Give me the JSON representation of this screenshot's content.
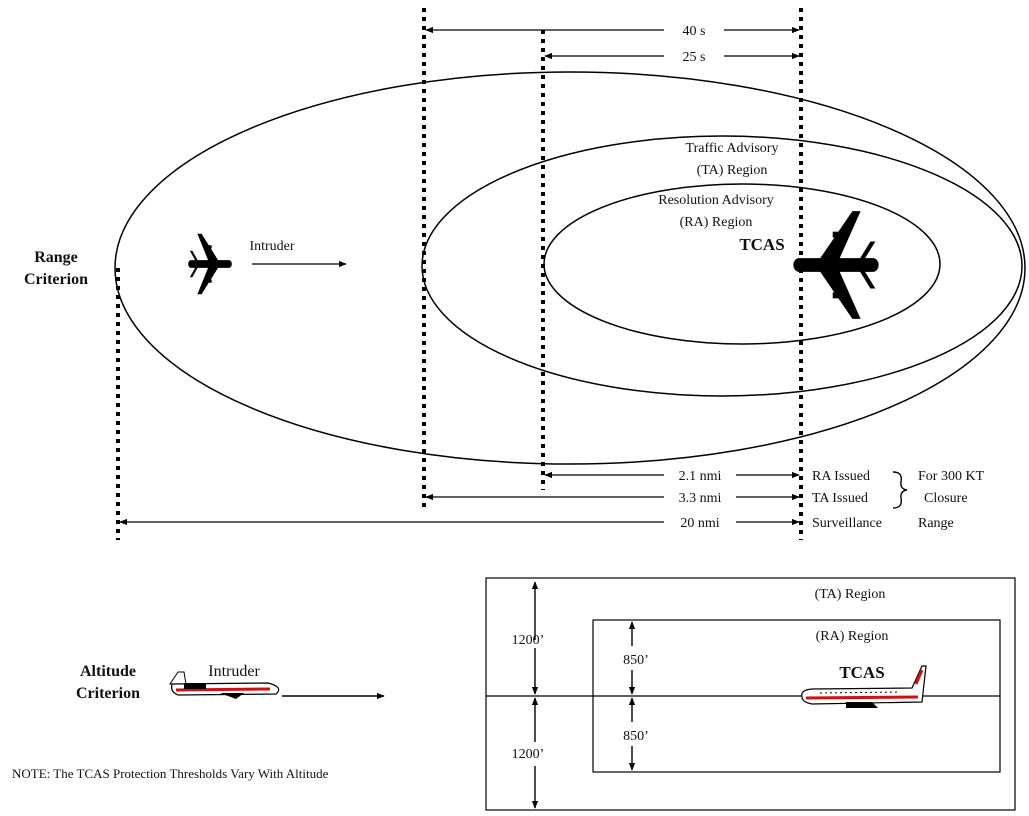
{
  "time_labels": {
    "forty": "40 s",
    "twentyfive": "25 s"
  },
  "regions": {
    "ta_line1": "Traffic Advisory",
    "ta_line2": "(TA) Region",
    "ra_line1": "Resolution Advisory",
    "ra_line2": "(RA) Region"
  },
  "aircraft": {
    "intruder": "Intruder",
    "tcas": "TCAS"
  },
  "range_criterion": {
    "line1": "Range",
    "line2": "Criterion"
  },
  "distances": {
    "ra_distance": "2.1 nmi",
    "ta_distance": "3.3 nmi",
    "surveillance_distance": "20 nmi",
    "ra_issued": "RA Issued",
    "ta_issued": "TA Issued",
    "surveillance": "Surveillance",
    "range": "Range",
    "closure_line1": "For 300 KT",
    "closure_line2": "Closure"
  },
  "altitude": {
    "criterion_line1": "Altitude",
    "criterion_line2": "Criterion",
    "intruder": "Intruder",
    "tcas": "TCAS",
    "ta_region": "(TA) Region",
    "ra_region": "(RA) Region",
    "ta_upper": "1200’",
    "ta_lower": "1200’",
    "ra_upper": "850’",
    "ra_lower": "850’"
  },
  "note": "NOTE: The TCAS Protection Thresholds Vary With Altitude",
  "colors": {
    "ink": "#000000",
    "stripe": "#cc1111"
  }
}
